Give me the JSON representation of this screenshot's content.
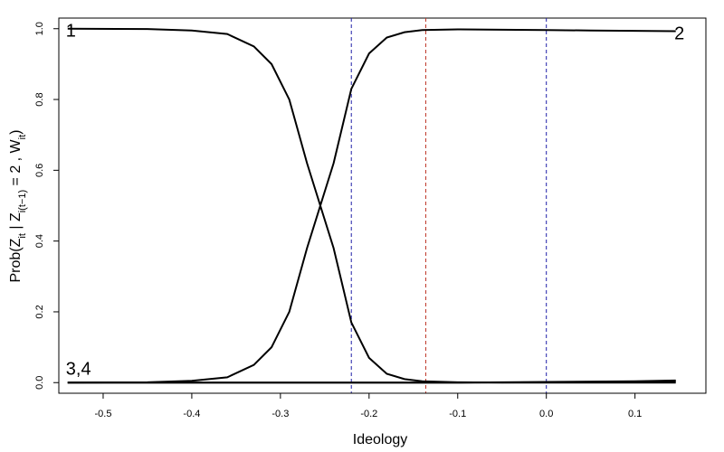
{
  "chart_data": {
    "type": "line",
    "title": "",
    "xlabel": "Ideology",
    "ylabel": {
      "main": "Prob(",
      "z_it": "Z",
      "z_it_sub": "it",
      "mid": " | ",
      "z_prev": "Z",
      "z_prev_sub": "i(t−1)",
      "eq": " = 2 , ",
      "w_it": "W",
      "w_it_sub": "it",
      "close": ")"
    },
    "xlim": [
      -0.55,
      0.18
    ],
    "ylim": [
      -0.03,
      1.03
    ],
    "xticks": [
      -0.5,
      -0.4,
      -0.3,
      -0.2,
      -0.1,
      0.0,
      0.1
    ],
    "xtick_labels": [
      "-0.5",
      "-0.4",
      "-0.3",
      "-0.2",
      "-0.1",
      "0.0",
      "0.1"
    ],
    "yticks": [
      0.0,
      0.2,
      0.4,
      0.6,
      0.8,
      1.0
    ],
    "ytick_labels": [
      "0.0",
      "0.2",
      "0.4",
      "0.6",
      "0.8",
      "1.0"
    ],
    "grid": false,
    "series": [
      {
        "name": "1",
        "color": "#000000",
        "x": [
          -0.54,
          -0.45,
          -0.4,
          -0.36,
          -0.33,
          -0.31,
          -0.29,
          -0.27,
          -0.255,
          -0.24,
          -0.22,
          -0.2,
          -0.18,
          -0.16,
          -0.14,
          -0.1,
          -0.05,
          0.0,
          0.05,
          0.1,
          0.146
        ],
        "y": [
          1.0,
          0.999,
          0.995,
          0.985,
          0.95,
          0.9,
          0.8,
          0.62,
          0.5,
          0.38,
          0.17,
          0.07,
          0.025,
          0.01,
          0.004,
          0.001,
          0.0,
          0.0,
          0.0,
          0.0,
          0.0
        ]
      },
      {
        "name": "2",
        "color": "#000000",
        "x": [
          -0.54,
          -0.45,
          -0.4,
          -0.36,
          -0.33,
          -0.31,
          -0.29,
          -0.27,
          -0.255,
          -0.24,
          -0.22,
          -0.2,
          -0.18,
          -0.16,
          -0.14,
          -0.1,
          -0.05,
          0.0,
          0.05,
          0.1,
          0.146
        ],
        "y": [
          0.0,
          0.001,
          0.005,
          0.015,
          0.05,
          0.1,
          0.2,
          0.38,
          0.5,
          0.62,
          0.83,
          0.93,
          0.975,
          0.99,
          0.996,
          0.998,
          0.997,
          0.996,
          0.995,
          0.994,
          0.993
        ]
      },
      {
        "name": "3",
        "color": "#000000",
        "x": [
          -0.54,
          -0.3,
          -0.1,
          0.0,
          0.05,
          0.1,
          0.146
        ],
        "y": [
          0.0,
          0.0,
          0.0,
          0.002,
          0.003,
          0.004,
          0.006
        ]
      },
      {
        "name": "4",
        "color": "#000000",
        "x": [
          -0.54,
          -0.3,
          -0.1,
          0.0,
          0.05,
          0.1,
          0.146
        ],
        "y": [
          0.0,
          0.0,
          0.0,
          0.001,
          0.002,
          0.003,
          0.004
        ]
      }
    ],
    "curve_labels": [
      {
        "text": "1",
        "x": -0.54,
        "y": 1.0
      },
      {
        "text": "2",
        "x": 0.146,
        "y": 0.993
      },
      {
        "text": "3,4",
        "x": -0.54,
        "y": 0.0
      }
    ],
    "vlines": [
      {
        "x": -0.22,
        "color": "#1f1fa8",
        "style": "dashed"
      },
      {
        "x": -0.136,
        "color": "#c0392b",
        "style": "dashed"
      },
      {
        "x": 0.0,
        "color": "#1f1fa8",
        "style": "dashed"
      }
    ]
  }
}
